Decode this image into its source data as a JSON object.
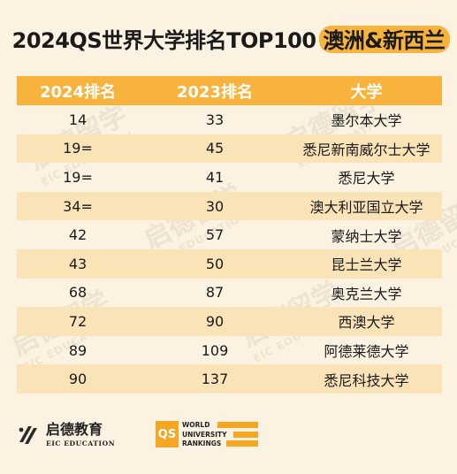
{
  "title": {
    "main": "2024QS世界大学排名TOP100 ",
    "highlight": "澳洲&新西兰"
  },
  "table": {
    "headers": [
      "2024排名",
      "2023排名",
      "大学"
    ],
    "rows": [
      [
        "14",
        "33",
        "墨尔本大学"
      ],
      [
        "19=",
        "45",
        "悉尼新南威尔士大学"
      ],
      [
        "19=",
        "41",
        "悉尼大学"
      ],
      [
        "34=",
        "30",
        "澳大利亚国立大学"
      ],
      [
        "42",
        "57",
        "蒙纳士大学"
      ],
      [
        "43",
        "50",
        "昆士兰大学"
      ],
      [
        "68",
        "87",
        "奥克兰大学"
      ],
      [
        "72",
        "90",
        "西澳大学"
      ],
      [
        "89",
        "109",
        "阿德莱德大学"
      ],
      [
        "90",
        "137",
        "悉尼科技大学"
      ]
    ]
  },
  "watermark": {
    "cn": "启德留学",
    "en": "EIC EDUCATION"
  },
  "footer": {
    "eic_cn": "启德教育",
    "eic_en": "EIC EDUCATION",
    "qs_badge": "QS",
    "qs_lines": [
      "WORLD",
      "UNIVERSITY",
      "RANKINGS"
    ]
  },
  "colors": {
    "accent": "#f7b33c",
    "stripe": "#fbe3b8",
    "background": "#fbf2e2"
  }
}
